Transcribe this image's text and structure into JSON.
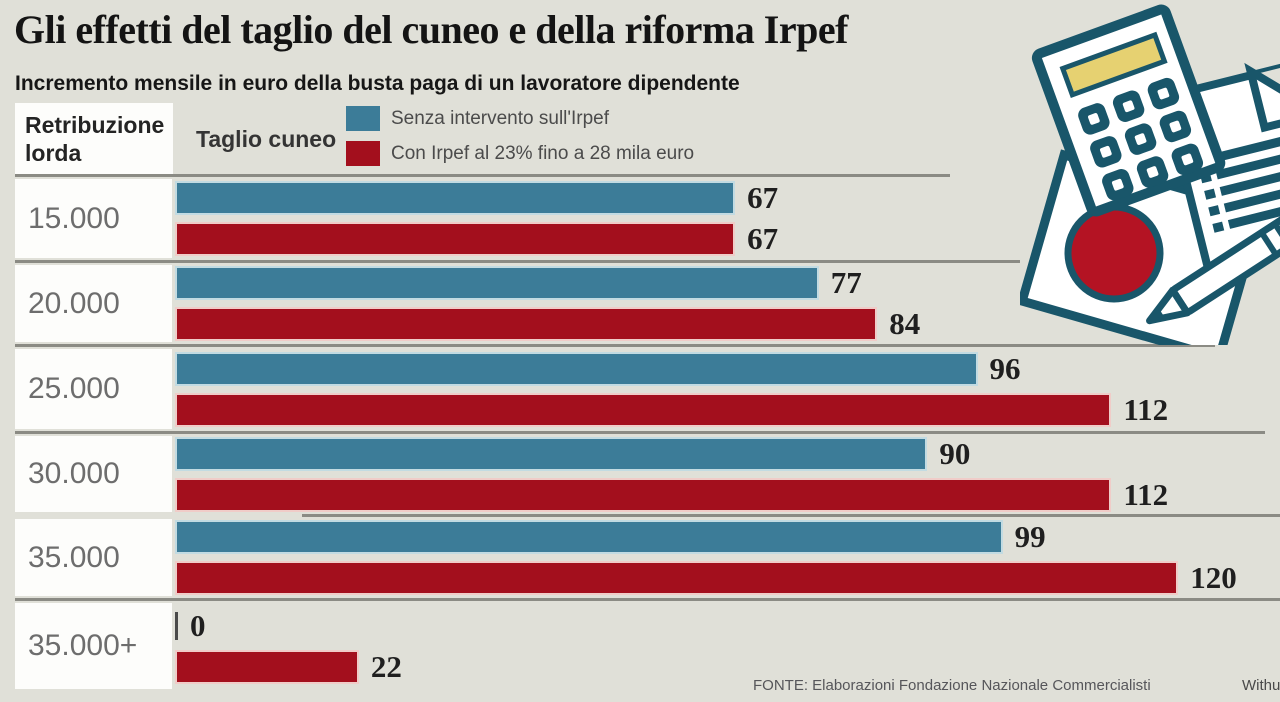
{
  "title": "Gli effetti del taglio del cuneo e della riforma Irpef",
  "subtitle": "Incremento mensile in euro della busta paga di un lavoratore dipendente",
  "columns": {
    "salary": "Retribuzione lorda",
    "cut": "Taglio cuneo"
  },
  "legend": {
    "items": [
      {
        "label": "Senza intervento sull'Irpef",
        "color": "#3c7c98"
      },
      {
        "label": "Con Irpef al 23% fino a 28 mila euro",
        "color": "#a30f1d"
      }
    ]
  },
  "chart_data": {
    "type": "bar",
    "orientation": "horizontal",
    "title": "Gli effetti del taglio del cuneo e della riforma Irpef",
    "subtitle": "Incremento mensile in euro della busta paga di un lavoratore dipendente",
    "categories": [
      "15.000",
      "20.000",
      "25.000",
      "30.000",
      "35.000",
      "35.000+"
    ],
    "series": [
      {
        "name": "Senza intervento sull'Irpef",
        "color": "#3c7c98",
        "values": [
          67,
          77,
          96,
          90,
          99,
          0
        ]
      },
      {
        "name": "Con Irpef al 23% fino a 28 mila euro",
        "color": "#a30f1d",
        "values": [
          67,
          84,
          112,
          112,
          120,
          22
        ]
      }
    ],
    "xlim": [
      0,
      130
    ],
    "value_labels_shown": true,
    "legend_position": "top",
    "grid": false
  },
  "footer": {
    "source": "FONTE: Elaborazioni Fondazione Nazionale Commercialisti",
    "credit": "Withu"
  },
  "illustration": {
    "name": "calculator-document-pen",
    "outline_color": "#19566a",
    "circle_color": "#b41323",
    "display_color": "#e6d171"
  }
}
